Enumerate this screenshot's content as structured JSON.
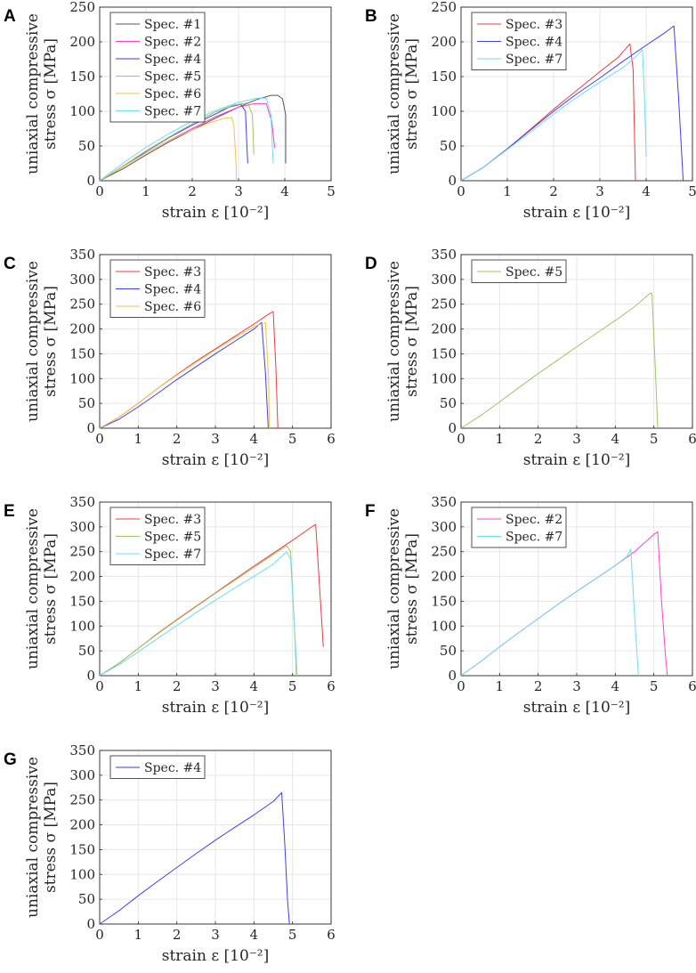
{
  "figure_name": "uniaxial-compression-stress-strain-curves",
  "colors": {
    "spec1": "#555555",
    "spec2": "#ff3fd6",
    "spec3": "#f03c3c",
    "spec4": "#3e3ef2",
    "spec5": "#9ec463",
    "spec6": "#f2c24a",
    "spec7": "#6fdcf2"
  },
  "chart_data": [
    {
      "type": "line",
      "panel": "A",
      "xlabel": "strain ε [10⁻²]",
      "ylabel_line1": "uniaxial compressive",
      "ylabel_line2": "stress σ [MPa]",
      "xlim": [
        0,
        5
      ],
      "ylim": [
        0,
        250
      ],
      "xticks": [
        "0",
        "1",
        "2",
        "3",
        "4",
        "5"
      ],
      "yticks": [
        "0",
        "50",
        "100",
        "150",
        "200",
        "250"
      ],
      "legend": "top-left",
      "series": [
        {
          "name": "Spec. #1",
          "color_key": "spec1",
          "x": [
            0,
            0.5,
            1.0,
            1.5,
            2.0,
            2.5,
            3.0,
            3.4,
            3.7,
            3.85,
            3.95,
            4.02,
            4.02
          ],
          "y": [
            0,
            17,
            37,
            56,
            73,
            90,
            106,
            117,
            123,
            123,
            118,
            95,
            25
          ]
        },
        {
          "name": "Spec. #2",
          "color_key": "spec2",
          "x": [
            0,
            0.5,
            1.0,
            1.5,
            2.0,
            2.5,
            3.0,
            3.35,
            3.6,
            3.72,
            3.78
          ],
          "y": [
            0,
            20,
            40,
            58,
            75,
            92,
            106,
            111,
            111,
            85,
            47
          ]
        },
        {
          "name": "Spec. #4",
          "color_key": "spec4",
          "x": [
            0,
            0.5,
            1.0,
            1.5,
            2.0,
            2.5,
            2.8,
            3.05,
            3.15,
            3.18,
            3.2
          ],
          "y": [
            0,
            20,
            42,
            62,
            80,
            96,
            106,
            110,
            100,
            50,
            25
          ]
        },
        {
          "name": "Spec. #5",
          "color_key": "spec5",
          "x": [
            0,
            0.5,
            1.0,
            1.5,
            2.0,
            2.5,
            2.9,
            3.2,
            3.3,
            3.33
          ],
          "y": [
            0,
            21,
            43,
            63,
            82,
            99,
            109,
            112,
            95,
            38
          ]
        },
        {
          "name": "Spec. #6",
          "color_key": "spec6",
          "x": [
            0,
            0.5,
            1.0,
            1.5,
            2.0,
            2.4,
            2.7,
            2.85,
            2.9,
            2.95,
            2.95
          ],
          "y": [
            0,
            20,
            40,
            58,
            73,
            84,
            90,
            91,
            80,
            20,
            0
          ]
        },
        {
          "name": "Spec. #7",
          "color_key": "spec7",
          "x": [
            0,
            0.5,
            1.0,
            1.5,
            2.0,
            2.5,
            3.0,
            3.4,
            3.6,
            3.7,
            3.75
          ],
          "y": [
            0,
            25,
            48,
            68,
            86,
            101,
            113,
            119,
            119,
            95,
            25
          ]
        }
      ]
    },
    {
      "type": "line",
      "panel": "B",
      "xlabel": "strain ε [10⁻²]",
      "ylabel_line1": "uniaxial compressive",
      "ylabel_line2": "stress σ [MPa]",
      "xlim": [
        0,
        5
      ],
      "ylim": [
        0,
        250
      ],
      "xticks": [
        "0",
        "1",
        "2",
        "3",
        "4",
        "5"
      ],
      "yticks": [
        "0",
        "50",
        "100",
        "150",
        "200",
        "250"
      ],
      "legend": "top-left",
      "series": [
        {
          "name": "Spec. #3",
          "color_key": "spec3",
          "x": [
            0,
            0.5,
            1.0,
            1.5,
            2.0,
            2.5,
            3.0,
            3.4,
            3.65,
            3.72,
            3.75,
            3.77
          ],
          "y": [
            0,
            20,
            46,
            74,
            103,
            130,
            157,
            178,
            197,
            160,
            60,
            0
          ]
        },
        {
          "name": "Spec. #4",
          "color_key": "spec4",
          "x": [
            0,
            0.5,
            1.0,
            1.5,
            2.0,
            2.5,
            3.0,
            3.5,
            4.0,
            4.4,
            4.6,
            4.7,
            4.8
          ],
          "y": [
            0,
            20,
            46,
            73,
            100,
            125,
            148,
            172,
            195,
            213,
            223,
            120,
            0
          ]
        },
        {
          "name": "Spec. #7",
          "color_key": "spec7",
          "x": [
            0,
            0.5,
            1.0,
            1.5,
            2.0,
            2.5,
            3.0,
            3.5,
            3.8,
            3.92,
            3.97,
            4.0
          ],
          "y": [
            0,
            20,
            45,
            70,
            96,
            120,
            142,
            163,
            180,
            189,
            110,
            35
          ]
        }
      ]
    },
    {
      "type": "line",
      "panel": "C",
      "xlabel": "strain ε [10⁻²]",
      "ylabel_line1": "uniaxial compressive",
      "ylabel_line2": "stress σ [MPa]",
      "xlim": [
        0,
        6
      ],
      "ylim": [
        0,
        350
      ],
      "xticks": [
        "0",
        "1",
        "2",
        "3",
        "4",
        "5",
        "6"
      ],
      "yticks": [
        "0",
        "50",
        "100",
        "150",
        "200",
        "250",
        "300",
        "350"
      ],
      "legend": "top-left",
      "series": [
        {
          "name": "Spec. #3",
          "color_key": "spec3",
          "x": [
            0,
            0.5,
            1.0,
            1.5,
            2.0,
            2.5,
            3.0,
            3.5,
            4.0,
            4.4,
            4.5,
            4.57,
            4.62
          ],
          "y": [
            0,
            22,
            50,
            80,
            108,
            135,
            160,
            185,
            210,
            231,
            235,
            120,
            0
          ]
        },
        {
          "name": "Spec. #4",
          "color_key": "spec4",
          "x": [
            0,
            0.5,
            1.0,
            1.5,
            2.0,
            2.5,
            3.0,
            3.5,
            4.0,
            4.2,
            4.3,
            4.37
          ],
          "y": [
            0,
            18,
            43,
            70,
            98,
            124,
            150,
            175,
            200,
            213,
            110,
            0
          ]
        },
        {
          "name": "Spec. #6",
          "color_key": "spec6",
          "x": [
            0,
            0.5,
            1.0,
            1.5,
            2.0,
            2.5,
            3.0,
            3.5,
            4.0,
            4.3,
            4.38,
            4.4
          ],
          "y": [
            0,
            22,
            50,
            80,
            107,
            133,
            158,
            182,
            205,
            213,
            100,
            0
          ]
        }
      ]
    },
    {
      "type": "line",
      "panel": "D",
      "xlabel": "strain ε [10⁻²]",
      "ylabel_line1": "uniaxial compressive",
      "ylabel_line2": "stress σ [MPa]",
      "xlim": [
        0,
        6
      ],
      "ylim": [
        0,
        350
      ],
      "xticks": [
        "0",
        "1",
        "2",
        "3",
        "4",
        "5",
        "6"
      ],
      "yticks": [
        "0",
        "50",
        "100",
        "150",
        "200",
        "250",
        "300",
        "350"
      ],
      "legend": "top-left",
      "series": [
        {
          "name": "Spec. #5",
          "color_key": "spec5",
          "x": [
            0,
            0.5,
            1.0,
            1.5,
            2.0,
            2.5,
            3.0,
            3.5,
            4.0,
            4.5,
            4.9,
            4.95,
            5.05,
            5.1
          ],
          "y": [
            0,
            25,
            53,
            82,
            110,
            137,
            164,
            191,
            217,
            245,
            272,
            272,
            100,
            0
          ]
        }
      ]
    },
    {
      "type": "line",
      "panel": "E",
      "xlabel": "strain ε [10⁻²]",
      "ylabel_line1": "uniaxial compressive",
      "ylabel_line2": "stress σ [MPa]",
      "xlim": [
        0,
        6
      ],
      "ylim": [
        0,
        350
      ],
      "xticks": [
        "0",
        "1",
        "2",
        "3",
        "4",
        "5",
        "6"
      ],
      "yticks": [
        "0",
        "50",
        "100",
        "150",
        "200",
        "250",
        "300",
        "350"
      ],
      "legend": "top-left",
      "series": [
        {
          "name": "Spec. #3",
          "color_key": "spec3",
          "x": [
            0,
            0.5,
            1.0,
            1.5,
            2.0,
            2.5,
            3.0,
            3.5,
            4.0,
            4.5,
            5.0,
            5.5,
            5.6,
            5.7,
            5.8
          ],
          "y": [
            0,
            25,
            55,
            85,
            113,
            140,
            167,
            194,
            221,
            247,
            273,
            300,
            305,
            180,
            58
          ]
        },
        {
          "name": "Spec. #5",
          "color_key": "spec5",
          "x": [
            0,
            0.5,
            1.0,
            1.5,
            2.0,
            2.5,
            3.0,
            3.5,
            4.0,
            4.5,
            4.85,
            4.95,
            5.05,
            5.1
          ],
          "y": [
            0,
            25,
            55,
            84,
            112,
            139,
            166,
            192,
            218,
            244,
            262,
            250,
            100,
            0
          ]
        },
        {
          "name": "Spec. #7",
          "color_key": "spec7",
          "x": [
            0,
            0.5,
            1.0,
            1.5,
            2.0,
            2.5,
            3.0,
            3.5,
            4.0,
            4.5,
            4.85,
            4.95,
            5.05,
            5.12
          ],
          "y": [
            0,
            22,
            48,
            75,
            101,
            127,
            152,
            177,
            200,
            225,
            250,
            235,
            100,
            0
          ]
        }
      ]
    },
    {
      "type": "line",
      "panel": "F",
      "xlabel": "strain ε [10⁻²]",
      "ylabel_line1": "uniaxial compressive",
      "ylabel_line2": "stress σ [MPa]",
      "xlim": [
        0,
        6
      ],
      "ylim": [
        0,
        350
      ],
      "xticks": [
        "0",
        "1",
        "2",
        "3",
        "4",
        "5",
        "6"
      ],
      "yticks": [
        "0",
        "50",
        "100",
        "150",
        "200",
        "250",
        "300",
        "350"
      ],
      "legend": "top-left",
      "series": [
        {
          "name": "Spec. #2",
          "color_key": "spec2",
          "x": [
            0,
            0.5,
            1.0,
            1.5,
            2.0,
            2.5,
            3.0,
            3.5,
            4.0,
            4.5,
            5.0,
            5.1,
            5.2,
            5.3,
            5.35
          ],
          "y": [
            0,
            28,
            58,
            87,
            115,
            143,
            170,
            196,
            222,
            250,
            285,
            290,
            150,
            40,
            0
          ]
        },
        {
          "name": "Spec. #7",
          "color_key": "spec7",
          "x": [
            0,
            0.5,
            1.0,
            1.5,
            2.0,
            2.5,
            3.0,
            3.5,
            4.0,
            4.3,
            4.4,
            4.5,
            4.6
          ],
          "y": [
            0,
            28,
            58,
            87,
            115,
            143,
            170,
            196,
            222,
            240,
            255,
            120,
            0
          ]
        }
      ]
    },
    {
      "type": "line",
      "panel": "G",
      "xlabel": "strain ε [10⁻²]",
      "ylabel_line1": "uniaxial compressive",
      "ylabel_line2": "stress σ [MPa]",
      "xlim": [
        0,
        6
      ],
      "ylim": [
        0,
        350
      ],
      "xticks": [
        "0",
        "1",
        "2",
        "3",
        "4",
        "5",
        "6"
      ],
      "yticks": [
        "0",
        "50",
        "100",
        "150",
        "200",
        "250",
        "300",
        "350"
      ],
      "legend": "top-left",
      "series": [
        {
          "name": "Spec. #4",
          "color_key": "spec4",
          "x": [
            0,
            0.5,
            1.0,
            1.5,
            2.0,
            2.5,
            3.0,
            3.5,
            4.0,
            4.5,
            4.72,
            4.8,
            4.87,
            4.92
          ],
          "y": [
            0,
            27,
            57,
            86,
            114,
            142,
            169,
            195,
            220,
            247,
            265,
            160,
            50,
            0
          ]
        }
      ]
    }
  ]
}
